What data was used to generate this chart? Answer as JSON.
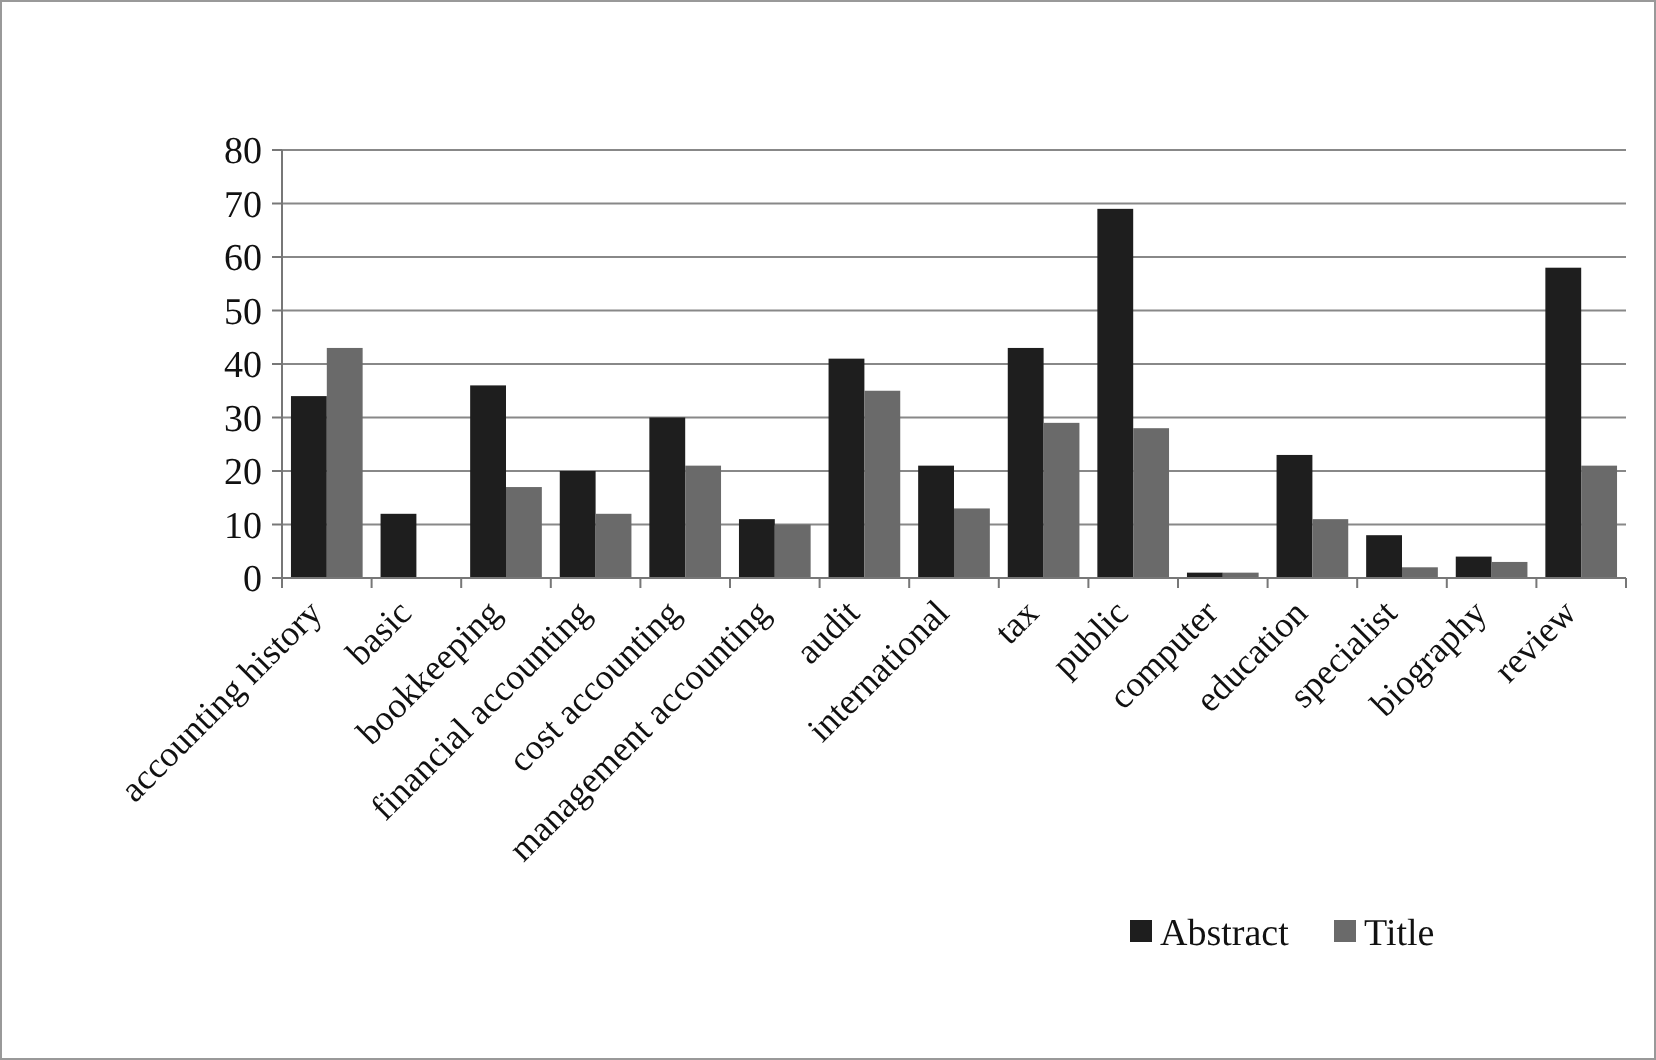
{
  "chart_data": {
    "type": "bar",
    "categories": [
      "accounting history",
      "basic",
      "bookkeeping",
      "financial accounting",
      "cost accounting",
      "management accounting",
      "audit",
      "international",
      "tax",
      "public",
      "computer",
      "education",
      "specialist",
      "biography",
      "review"
    ],
    "series": [
      {
        "name": "Abstract",
        "color": "#1e1e1e",
        "values": [
          34,
          12,
          36,
          20,
          30,
          11,
          41,
          21,
          43,
          69,
          1,
          23,
          8,
          4,
          58
        ]
      },
      {
        "name": "Title",
        "color": "#6a6a6a",
        "values": [
          43,
          null,
          17,
          12,
          21,
          10,
          35,
          13,
          29,
          28,
          1,
          11,
          2,
          3,
          21
        ]
      }
    ],
    "ylim": [
      0,
      80
    ],
    "yticks": [
      0,
      10,
      20,
      30,
      40,
      50,
      60,
      70,
      80
    ],
    "grid": "y",
    "legend": "bottom right"
  }
}
